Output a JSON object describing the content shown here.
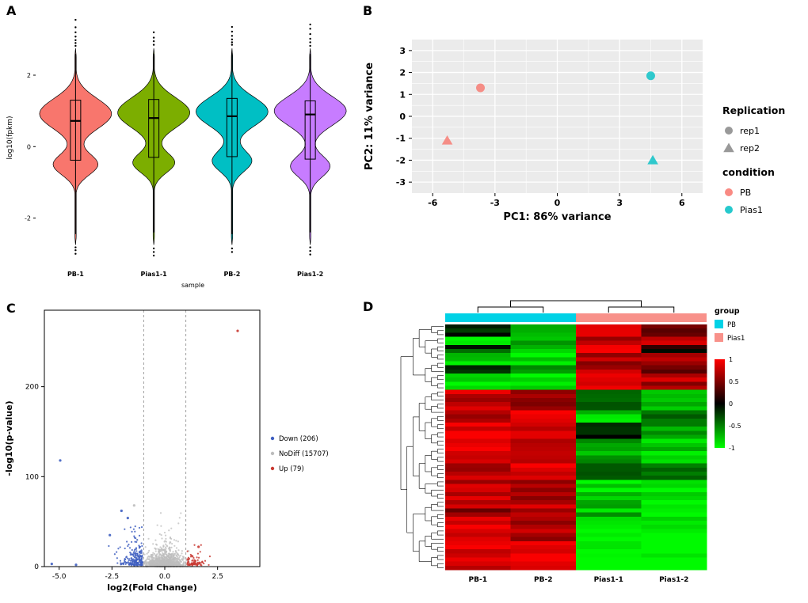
{
  "panel_labels": {
    "a": "A",
    "b": "B",
    "c": "C",
    "d": "D"
  },
  "chart_data": [
    {
      "id": "panel_a",
      "type": "violin",
      "title": "",
      "xlabel": "sample",
      "ylabel": "log10(fpkm)",
      "ylim": [
        -3.25,
        3.75
      ],
      "yticks": [
        -2,
        0,
        2
      ],
      "categories": [
        "PB-1",
        "Pias1-1",
        "PB-2",
        "Pias1-2"
      ],
      "violins": [
        {
          "label": "PB-1",
          "color": "#F8766D",
          "mode_hi": 0.92,
          "sd_hi": 0.6,
          "amp_hi": 1.0,
          "mode_lo": -0.5,
          "sd_lo": 0.42,
          "amp_lo": 0.62,
          "min": -2.75,
          "max": 2.75,
          "q1": -0.38,
          "median": 0.72,
          "q3": 1.3,
          "whisker_low": -2.45,
          "whisker_high": 2.6,
          "outliers_high": [
            2.82,
            2.9,
            2.98,
            3.08,
            3.2,
            3.34,
            3.55
          ],
          "outliers_low": [
            -2.82,
            -2.9,
            -3.0
          ]
        },
        {
          "label": "Pias1-1",
          "color": "#7CAE00",
          "mode_hi": 0.95,
          "sd_hi": 0.6,
          "amp_hi": 1.0,
          "mode_lo": -0.45,
          "sd_lo": 0.4,
          "amp_lo": 0.58,
          "min": -2.75,
          "max": 2.75,
          "q1": -0.3,
          "median": 0.8,
          "q3": 1.32,
          "whisker_low": -2.4,
          "whisker_high": 2.6,
          "outliers_high": [
            2.85,
            2.95,
            3.05,
            3.2
          ],
          "outliers_low": [
            -2.85,
            -2.95,
            -3.05
          ]
        },
        {
          "label": "PB-2",
          "color": "#00BFC4",
          "mode_hi": 0.98,
          "sd_hi": 0.58,
          "amp_hi": 1.0,
          "mode_lo": -0.4,
          "sd_lo": 0.42,
          "amp_lo": 0.55,
          "min": -2.75,
          "max": 2.75,
          "q1": -0.28,
          "median": 0.85,
          "q3": 1.35,
          "whisker_low": -2.45,
          "whisker_high": 2.65,
          "outliers_high": [
            2.85,
            2.92,
            3.0,
            3.1,
            3.22,
            3.35
          ],
          "outliers_low": [
            -2.85,
            -2.95
          ]
        },
        {
          "label": "Pias1-2",
          "color": "#C77CFF",
          "mode_hi": 1.0,
          "sd_hi": 0.58,
          "amp_hi": 1.0,
          "mode_lo": -0.55,
          "sd_lo": 0.42,
          "amp_lo": 0.55,
          "min": -2.75,
          "max": 2.75,
          "q1": -0.35,
          "median": 0.9,
          "q3": 1.28,
          "whisker_low": -2.4,
          "whisker_high": 2.6,
          "outliers_high": [
            2.82,
            2.92,
            3.02,
            3.15,
            3.3,
            3.42
          ],
          "outliers_low": [
            -2.82,
            -2.92,
            -3.02
          ]
        }
      ]
    },
    {
      "id": "panel_b",
      "type": "scatter",
      "xlabel": "PC1: 86% variance",
      "ylabel": "PC2: 11% variance",
      "xlim": [
        -7,
        7
      ],
      "ylim": [
        -3.5,
        3.5
      ],
      "xticks": [
        -6,
        -3,
        0,
        3,
        6
      ],
      "yticks": [
        -3,
        -2,
        -1,
        0,
        1,
        2,
        3
      ],
      "panel_bg": "#EBEBEB",
      "points": [
        {
          "x": -3.7,
          "y": 1.3,
          "condition": "PB",
          "replication": "rep1",
          "shape": "circle",
          "color": "#F8766D"
        },
        {
          "x": -5.3,
          "y": -1.1,
          "condition": "PB",
          "replication": "rep2",
          "shape": "triangle",
          "color": "#F8766D"
        },
        {
          "x": 4.5,
          "y": 1.85,
          "condition": "Pias1",
          "replication": "rep1",
          "shape": "circle",
          "color": "#00BFC4"
        },
        {
          "x": 4.6,
          "y": -2.0,
          "condition": "Pias1",
          "replication": "rep2",
          "shape": "triangle",
          "color": "#00BFC4"
        }
      ],
      "legend": {
        "replication": {
          "title": "Replication",
          "symbol_color": "#7F7F7F",
          "items": [
            {
              "label": "rep1",
              "shape": "circle"
            },
            {
              "label": "rep2",
              "shape": "triangle"
            }
          ]
        },
        "condition": {
          "title": "condition",
          "items": [
            {
              "label": "PB",
              "color": "#F8766D"
            },
            {
              "label": "Pias1",
              "color": "#00BFC4"
            }
          ]
        }
      }
    },
    {
      "id": "panel_c",
      "type": "scatter",
      "xlabel": "log2(Fold Change)",
      "ylabel": "-log10(p-value)",
      "xlim": [
        -5.7,
        4.5
      ],
      "ylim": [
        0,
        285
      ],
      "xtick_values": [
        -5,
        -2.5,
        0,
        2.5
      ],
      "xtick_labels": [
        "-5.0",
        "-2.5",
        "0.0",
        "2.5"
      ],
      "yticks": [
        0,
        100,
        200
      ],
      "threshold_lines_x": [
        -1,
        1
      ],
      "counts": {
        "down": 206,
        "nodiff": 15707,
        "up": 79
      },
      "legend": {
        "items": [
          {
            "class": "down",
            "label": "Down (206)",
            "color": "#3F5FC1"
          },
          {
            "class": "nodiff",
            "label": "NoDiff (15707)",
            "color": "#BDBDBD"
          },
          {
            "class": "up",
            "label": "Up (79)",
            "color": "#C93A32"
          }
        ]
      },
      "highlight_points": [
        {
          "x": 3.45,
          "y": 262,
          "class": "up"
        },
        {
          "x": -4.95,
          "y": 118,
          "class": "down"
        },
        {
          "x": -5.35,
          "y": 3,
          "class": "down"
        },
        {
          "x": -4.2,
          "y": 2,
          "class": "down"
        },
        {
          "x": -2.05,
          "y": 62,
          "class": "down"
        },
        {
          "x": -1.75,
          "y": 54,
          "class": "down"
        },
        {
          "x": -1.45,
          "y": 68,
          "class": "nodiff"
        },
        {
          "x": -2.6,
          "y": 35,
          "class": "down"
        },
        {
          "x": 1.6,
          "y": 22,
          "class": "up"
        }
      ],
      "cloud": {
        "seed": 7,
        "nodiff_n": 1100
      }
    },
    {
      "id": "panel_d",
      "type": "heatmap",
      "columns": [
        "PB-1",
        "PB-2",
        "Pias1-1",
        "Pias1-2"
      ],
      "column_groups": [
        "PB",
        "PB",
        "Pias1",
        "Pias1"
      ],
      "group_legend": {
        "title": "group",
        "items": [
          {
            "label": "PB",
            "color": "#00D2E6"
          },
          {
            "label": "Pias1",
            "color": "#F8918A"
          }
        ]
      },
      "colorbar": {
        "labels": [
          "1",
          "0.5",
          "0",
          "-0.5",
          "-1"
        ],
        "top_color": "#FF0000",
        "mid_color": "#000000",
        "bottom_color": "#00FF00"
      },
      "value_range": [
        -1.25,
        1.25
      ],
      "seed": 11,
      "row_blocks": [
        {
          "rows": 3,
          "values": [
            -0.15,
            -0.9,
            1.1,
            0.45
          ]
        },
        {
          "rows": 2,
          "values": [
            -1.05,
            -0.8,
            0.9,
            1.1
          ]
        },
        {
          "rows": 2,
          "values": [
            -0.3,
            -1.1,
            1.2,
            0.1
          ]
        },
        {
          "rows": 3,
          "values": [
            -0.9,
            -1.2,
            0.8,
            0.9
          ]
        },
        {
          "rows": 2,
          "values": [
            -0.1,
            -0.7,
            1.0,
            0.6
          ]
        },
        {
          "rows": 4,
          "values": [
            -1.0,
            -1.15,
            1.1,
            0.9
          ]
        },
        {
          "rows": 5,
          "values": [
            1.05,
            0.7,
            -0.45,
            -0.9
          ]
        },
        {
          "rows": 3,
          "values": [
            0.8,
            1.1,
            -1.0,
            -0.5
          ]
        },
        {
          "rows": 4,
          "values": [
            1.2,
            0.95,
            -0.15,
            -0.75
          ]
        },
        {
          "rows": 6,
          "values": [
            1.1,
            1.0,
            -0.8,
            -1.0
          ]
        },
        {
          "rows": 4,
          "values": [
            0.9,
            1.2,
            -0.35,
            -0.65
          ]
        },
        {
          "rows": 5,
          "values": [
            1.0,
            0.85,
            -1.1,
            -1.2
          ]
        },
        {
          "rows": 4,
          "values": [
            0.75,
            1.05,
            -0.9,
            -1.25
          ]
        },
        {
          "rows": 6,
          "values": [
            1.15,
            0.95,
            -1.2,
            -1.1
          ]
        },
        {
          "rows": 7,
          "values": [
            1.05,
            1.1,
            -1.3,
            -1.35
          ]
        }
      ]
    }
  ]
}
